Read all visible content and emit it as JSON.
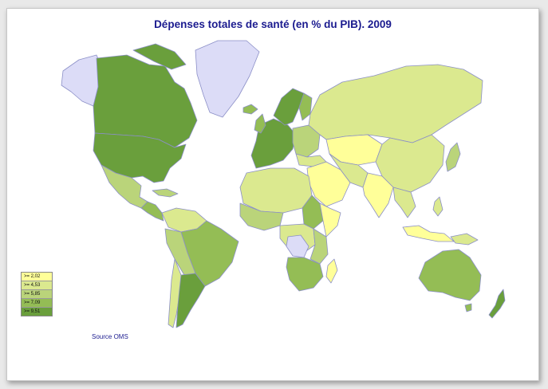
{
  "title": "Dépenses totales de santé (en % du PIB). 2009",
  "source": "Source OMS",
  "legend": [
    {
      "label": ">= 2,02",
      "color": "#ffff99"
    },
    {
      "label": ">= 4,53",
      "color": "#dbe98f"
    },
    {
      "label": ">= 5,85",
      "color": "#bad47a"
    },
    {
      "label": ">= 7,09",
      "color": "#94bd55"
    },
    {
      "label": ">= 9,51",
      "color": "#6a9f3c"
    }
  ],
  "colors": {
    "no_data": "#dcdcf7",
    "border": "#8b8fc7",
    "ocean": "#ffffff"
  }
}
